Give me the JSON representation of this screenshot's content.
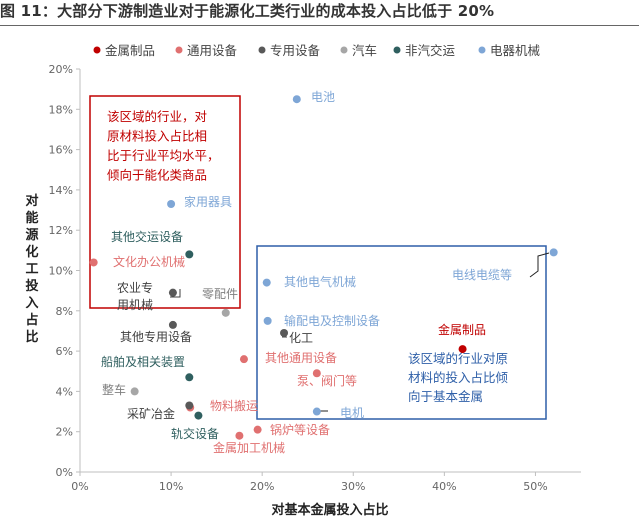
{
  "figure_title": "图 11：大部分下游制造业对于能源化工类行业的成本投入占比低于 20%",
  "chart_data": {
    "type": "scatter",
    "xlabel": "对基本金属投入占比",
    "ylabel": "对能源化工投入占比",
    "xlim": [
      0,
      0.55
    ],
    "ylim": [
      0,
      0.2
    ],
    "xticks": [
      "0%",
      "10%",
      "20%",
      "30%",
      "40%",
      "50%"
    ],
    "xtick_values": [
      0,
      0.1,
      0.2,
      0.3,
      0.4,
      0.5
    ],
    "yticks": [
      "0%",
      "2%",
      "4%",
      "6%",
      "8%",
      "10%",
      "12%",
      "14%",
      "16%",
      "18%",
      "20%"
    ],
    "ytick_values": [
      0,
      0.02,
      0.04,
      0.06,
      0.08,
      0.1,
      0.12,
      0.14,
      0.16,
      0.18,
      0.2
    ],
    "grid": false,
    "legend_position": "top",
    "series": [
      {
        "name": "金属制品",
        "color": "#c00000",
        "points": [
          {
            "label": "金属制品",
            "x": 0.42,
            "y": 0.061,
            "label_color": "#c00000"
          }
        ]
      },
      {
        "name": "通用设备",
        "color": "#e07070",
        "points": [
          {
            "label": "文化办公机械",
            "x": 0.015,
            "y": 0.104
          },
          {
            "label": "其他通用设备",
            "x": 0.18,
            "y": 0.056
          },
          {
            "label": "泵、阀门等",
            "x": 0.26,
            "y": 0.049
          },
          {
            "label": "物料搬运",
            "x": 0.121,
            "y": 0.032
          },
          {
            "label": "锅炉等设备",
            "x": 0.195,
            "y": 0.021
          },
          {
            "label": "金属加工机械",
            "x": 0.175,
            "y": 0.018
          }
        ]
      },
      {
        "name": "专用设备",
        "color": "#595959",
        "points": [
          {
            "label": "农业专用机械",
            "x": 0.102,
            "y": 0.089,
            "label_color": "#404040"
          },
          {
            "label": "其他专用设备",
            "x": 0.102,
            "y": 0.073,
            "label_color": "#404040"
          },
          {
            "label": "化工",
            "x": 0.224,
            "y": 0.069,
            "label_color": "#404040"
          },
          {
            "label": "采矿冶金",
            "x": 0.12,
            "y": 0.033,
            "label_color": "#404040"
          }
        ]
      },
      {
        "name": "汽车",
        "color": "#a6a6a6",
        "points": [
          {
            "label": "零配件",
            "x": 0.16,
            "y": 0.079,
            "label_color": "#808080"
          },
          {
            "label": "整车",
            "x": 0.06,
            "y": 0.04,
            "label_color": "#808080"
          }
        ]
      },
      {
        "name": "非汽交运",
        "color": "#2f5f5f",
        "points": [
          {
            "label": "其他交运设备",
            "x": 0.12,
            "y": 0.108
          },
          {
            "label": "船舶及相关装置",
            "x": 0.12,
            "y": 0.047
          },
          {
            "label": "轨交设备",
            "x": 0.13,
            "y": 0.028
          }
        ]
      },
      {
        "name": "电器机械",
        "color": "#7ea6d6",
        "points": [
          {
            "label": "电池",
            "x": 0.238,
            "y": 0.185
          },
          {
            "label": "家用器具",
            "x": 0.1,
            "y": 0.133
          },
          {
            "label": "电线电缆等",
            "x": 0.52,
            "y": 0.109
          },
          {
            "label": "其他电气机械",
            "x": 0.205,
            "y": 0.094
          },
          {
            "label": "输配电及控制设备",
            "x": 0.206,
            "y": 0.075
          },
          {
            "label": "电机",
            "x": 0.26,
            "y": 0.03
          }
        ]
      }
    ],
    "annotations": [
      {
        "text": "该区域的行业，对原材料投入占比相比于行业平均水平，倾向于能化类商品",
        "lines": [
          "该区域的行业，对",
          "原材料投入占比相",
          "比于行业平均水平，",
          "倾向于能化类商品"
        ],
        "color": "#c00000"
      },
      {
        "text": "该区域的行业对原材料的投入占比倾向于基本金属",
        "lines": [
          "该区域的行业对原",
          "材料的投入占比倾",
          "向于基本金属"
        ],
        "color": "#2e5fa8"
      }
    ]
  }
}
